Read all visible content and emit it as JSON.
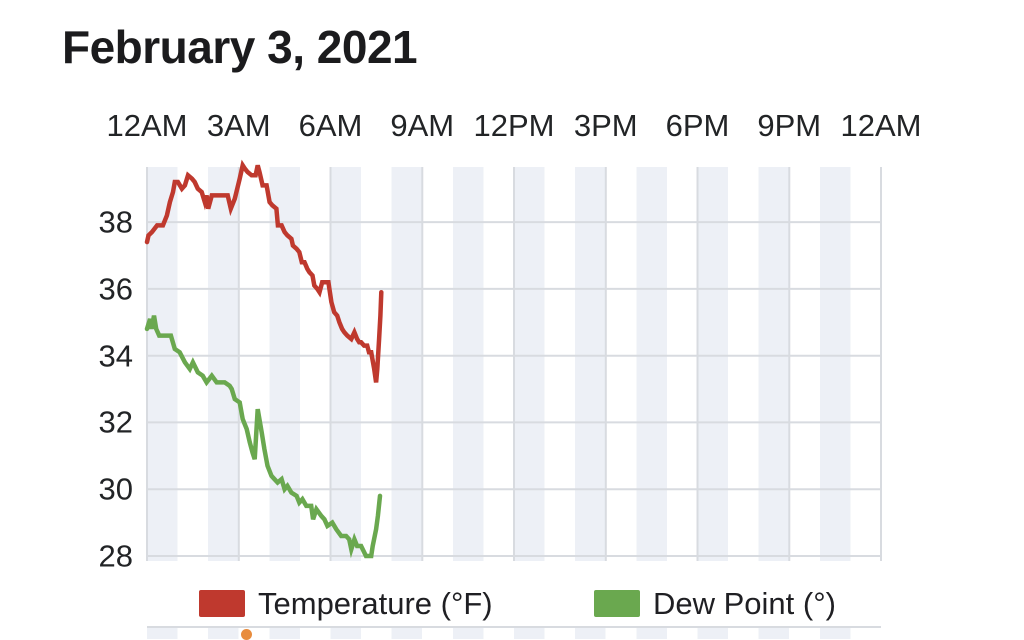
{
  "title": "February 3, 2021",
  "chart_data": {
    "type": "line",
    "title": "February 3, 2021",
    "x_axis": {
      "position": "top",
      "unit": "time-of-day",
      "tick_labels": [
        "12AM",
        "3AM",
        "6AM",
        "9AM",
        "12PM",
        "3PM",
        "6PM",
        "9PM",
        "12AM"
      ],
      "tick_hours": [
        0,
        3,
        6,
        9,
        12,
        15,
        18,
        21,
        24
      ],
      "range_hours": [
        0,
        24
      ]
    },
    "y_axis": {
      "tick_labels": [
        "28",
        "30",
        "32",
        "34",
        "36",
        "38"
      ],
      "tick_values": [
        28,
        30,
        32,
        34,
        36,
        38
      ],
      "domain": [
        27.85,
        39.65
      ]
    },
    "grid": {
      "on": true,
      "color": "#d8dbe0",
      "vertical_every_hours": 3
    },
    "background_bands": {
      "band_hours": 1,
      "color": "#edf0f6",
      "alt_color": "#ffffff"
    },
    "legend": {
      "position": "bottom",
      "items": [
        {
          "label": "Temperature (°F)",
          "color": "#bf392e"
        },
        {
          "label": "Dew Point (°)",
          "color": "#6aa84f"
        }
      ]
    },
    "series": [
      {
        "name": "Temperature (°F)",
        "color": "#bf392e",
        "points": [
          [
            0.0,
            37.4
          ],
          [
            0.05,
            37.6
          ],
          [
            0.16,
            37.7
          ],
          [
            0.33,
            37.9
          ],
          [
            0.52,
            37.9
          ],
          [
            0.65,
            38.2
          ],
          [
            0.75,
            38.6
          ],
          [
            0.85,
            38.9
          ],
          [
            0.91,
            39.2
          ],
          [
            1.01,
            39.2
          ],
          [
            1.14,
            39.0
          ],
          [
            1.24,
            39.1
          ],
          [
            1.34,
            39.4
          ],
          [
            1.47,
            39.3
          ],
          [
            1.56,
            39.2
          ],
          [
            1.66,
            39.0
          ],
          [
            1.79,
            38.9
          ],
          [
            1.89,
            38.6
          ],
          [
            1.95,
            38.8
          ],
          [
            2.0,
            38.4
          ],
          [
            2.12,
            38.8
          ],
          [
            2.35,
            38.8
          ],
          [
            2.64,
            38.8
          ],
          [
            2.74,
            38.4
          ],
          [
            2.87,
            38.7
          ],
          [
            3.03,
            39.3
          ],
          [
            3.13,
            39.7
          ],
          [
            3.2,
            39.6
          ],
          [
            3.29,
            39.5
          ],
          [
            3.42,
            39.4
          ],
          [
            3.55,
            39.4
          ],
          [
            3.62,
            39.7
          ],
          [
            3.68,
            39.5
          ],
          [
            3.78,
            39.1
          ],
          [
            3.91,
            39.1
          ],
          [
            4.01,
            38.6
          ],
          [
            4.1,
            38.5
          ],
          [
            4.23,
            38.4
          ],
          [
            4.28,
            37.9
          ],
          [
            4.4,
            37.9
          ],
          [
            4.5,
            37.7
          ],
          [
            4.59,
            37.6
          ],
          [
            4.72,
            37.5
          ],
          [
            4.77,
            37.3
          ],
          [
            4.89,
            37.2
          ],
          [
            4.98,
            37.1
          ],
          [
            5.06,
            36.8
          ],
          [
            5.15,
            36.8
          ],
          [
            5.24,
            36.6
          ],
          [
            5.31,
            36.5
          ],
          [
            5.41,
            36.4
          ],
          [
            5.47,
            36.1
          ],
          [
            5.57,
            36.0
          ],
          [
            5.64,
            35.9
          ],
          [
            5.73,
            36.2
          ],
          [
            5.93,
            36.2
          ],
          [
            6.03,
            35.6
          ],
          [
            6.12,
            35.3
          ],
          [
            6.22,
            35.2
          ],
          [
            6.29,
            35.0
          ],
          [
            6.38,
            34.8
          ],
          [
            6.45,
            34.7
          ],
          [
            6.55,
            34.6
          ],
          [
            6.68,
            34.5
          ],
          [
            6.78,
            34.7
          ],
          [
            6.87,
            34.5
          ],
          [
            6.94,
            34.4
          ],
          [
            7.0,
            34.4
          ],
          [
            7.1,
            34.3
          ],
          [
            7.2,
            34.3
          ],
          [
            7.26,
            34.1
          ],
          [
            7.33,
            34.1
          ],
          [
            7.37,
            33.9
          ],
          [
            7.43,
            33.6
          ],
          [
            7.49,
            33.2
          ],
          [
            7.53,
            33.6
          ],
          [
            7.59,
            34.5
          ],
          [
            7.63,
            35.2
          ],
          [
            7.66,
            35.9
          ]
        ]
      },
      {
        "name": "Dew Point (°)",
        "color": "#6aa84f",
        "points": [
          [
            0.0,
            34.8
          ],
          [
            0.1,
            35.1
          ],
          [
            0.15,
            34.8
          ],
          [
            0.23,
            35.2
          ],
          [
            0.3,
            34.8
          ],
          [
            0.4,
            34.6
          ],
          [
            0.6,
            34.6
          ],
          [
            0.78,
            34.6
          ],
          [
            0.91,
            34.2
          ],
          [
            1.07,
            34.1
          ],
          [
            1.24,
            33.8
          ],
          [
            1.4,
            33.6
          ],
          [
            1.5,
            33.8
          ],
          [
            1.66,
            33.5
          ],
          [
            1.82,
            33.4
          ],
          [
            1.95,
            33.2
          ],
          [
            2.12,
            33.4
          ],
          [
            2.28,
            33.2
          ],
          [
            2.54,
            33.2
          ],
          [
            2.7,
            33.1
          ],
          [
            2.77,
            33.0
          ],
          [
            2.87,
            32.7
          ],
          [
            3.03,
            32.6
          ],
          [
            3.13,
            32.1
          ],
          [
            3.26,
            31.8
          ],
          [
            3.36,
            31.4
          ],
          [
            3.45,
            31.1
          ],
          [
            3.52,
            30.9
          ],
          [
            3.62,
            32.4
          ],
          [
            3.75,
            31.7
          ],
          [
            3.84,
            31.2
          ],
          [
            3.94,
            30.7
          ],
          [
            4.07,
            30.4
          ],
          [
            4.17,
            30.3
          ],
          [
            4.27,
            30.2
          ],
          [
            4.4,
            30.3
          ],
          [
            4.5,
            30.0
          ],
          [
            4.59,
            30.1
          ],
          [
            4.72,
            29.9
          ],
          [
            4.89,
            29.8
          ],
          [
            4.98,
            29.6
          ],
          [
            5.08,
            29.7
          ],
          [
            5.21,
            29.5
          ],
          [
            5.37,
            29.5
          ],
          [
            5.43,
            29.1
          ],
          [
            5.54,
            29.4
          ],
          [
            5.7,
            29.2
          ],
          [
            5.8,
            29.1
          ],
          [
            5.9,
            28.9
          ],
          [
            6.06,
            29.0
          ],
          [
            6.19,
            28.8
          ],
          [
            6.35,
            28.6
          ],
          [
            6.51,
            28.6
          ],
          [
            6.61,
            28.5
          ],
          [
            6.68,
            28.2
          ],
          [
            6.78,
            28.5
          ],
          [
            6.87,
            28.3
          ],
          [
            7.0,
            28.3
          ],
          [
            7.16,
            28.0
          ],
          [
            7.26,
            28.0
          ],
          [
            7.33,
            28.0
          ],
          [
            7.38,
            28.3
          ],
          [
            7.49,
            28.8
          ],
          [
            7.55,
            29.2
          ],
          [
            7.62,
            29.8
          ]
        ]
      }
    ]
  },
  "partial_next_chart": {
    "marker_color": "#e88c3d"
  }
}
